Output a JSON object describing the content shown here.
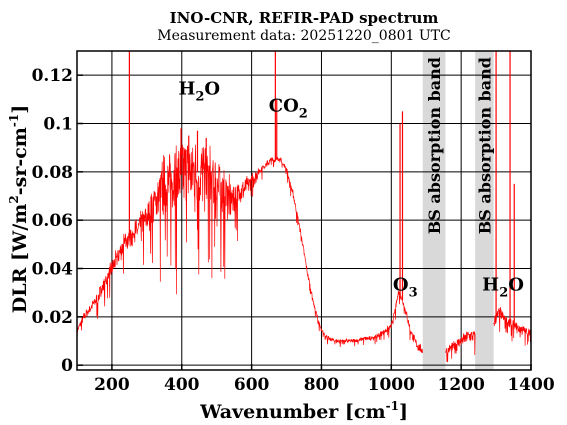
{
  "chart_data": {
    "type": "line",
    "title": "INO-CNR, REFIR-PAD spectrum",
    "subtitle": "Measurement data: 20251220_0801 UTC",
    "xlabel": {
      "main": "Wavenumber [cm",
      "sup": "-1",
      "close": "]"
    },
    "ylabel": {
      "part1": "DLR [W/m",
      "sup1": "2",
      "part2": "-sr-cm",
      "sup2": "-1",
      "part3": "]"
    },
    "xlim": [
      100,
      1400
    ],
    "ylim": [
      -0.002,
      0.13
    ],
    "x_ticks": [
      200,
      400,
      600,
      800,
      1000,
      1200,
      1400
    ],
    "y_ticks": [
      0,
      0.02,
      0.04,
      0.06,
      0.08,
      0.1,
      0.12
    ],
    "y_tick_labels": [
      "0",
      "0.02",
      "0.04",
      "0.06",
      "0.08",
      "0.1",
      "0.12"
    ],
    "grid": true,
    "line_color": "#ff0000",
    "band_color": "#d9d9d9",
    "shaded_bands": [
      {
        "x0": 1090,
        "x1": 1155,
        "label": "BS absorption band"
      },
      {
        "x0": 1240,
        "x1": 1293,
        "label": "BS absorption band"
      }
    ],
    "annotations": [
      {
        "main": "H",
        "sub": "2",
        "tail": "O",
        "x": 450,
        "y": 0.112
      },
      {
        "main": "CO",
        "sub": "2",
        "tail": "",
        "x": 705,
        "y": 0.105
      },
      {
        "main": "O",
        "sub": "3",
        "tail": "",
        "x": 1040,
        "y": 0.031
      },
      {
        "main": "H",
        "sub": "2",
        "tail": "O",
        "x": 1320,
        "y": 0.031
      }
    ],
    "series": [
      {
        "envelope_points": [
          [
            100,
            0.014
          ],
          [
            120,
            0.02
          ],
          [
            140,
            0.024
          ],
          [
            160,
            0.028
          ],
          [
            180,
            0.034
          ],
          [
            200,
            0.04
          ],
          [
            220,
            0.046
          ],
          [
            240,
            0.051
          ],
          [
            260,
            0.054
          ],
          [
            280,
            0.057
          ],
          [
            300,
            0.061
          ],
          [
            320,
            0.066
          ],
          [
            340,
            0.071
          ],
          [
            360,
            0.074
          ],
          [
            380,
            0.077
          ],
          [
            400,
            0.079
          ],
          [
            420,
            0.08
          ],
          [
            440,
            0.08
          ],
          [
            460,
            0.079
          ],
          [
            480,
            0.077
          ],
          [
            500,
            0.074
          ],
          [
            520,
            0.071
          ],
          [
            540,
            0.068
          ],
          [
            560,
            0.07
          ],
          [
            580,
            0.073
          ],
          [
            600,
            0.076
          ],
          [
            620,
            0.08
          ],
          [
            640,
            0.083
          ],
          [
            660,
            0.085
          ],
          [
            680,
            0.085
          ],
          [
            700,
            0.081
          ],
          [
            720,
            0.07
          ],
          [
            740,
            0.055
          ],
          [
            760,
            0.038
          ],
          [
            780,
            0.024
          ],
          [
            800,
            0.014
          ],
          [
            820,
            0.011
          ],
          [
            840,
            0.01
          ],
          [
            860,
            0.01
          ],
          [
            880,
            0.01
          ],
          [
            900,
            0.01
          ],
          [
            920,
            0.011
          ],
          [
            940,
            0.011
          ],
          [
            960,
            0.012
          ],
          [
            980,
            0.014
          ],
          [
            1000,
            0.016
          ],
          [
            1010,
            0.022
          ],
          [
            1020,
            0.03
          ],
          [
            1030,
            0.028
          ],
          [
            1045,
            0.02
          ],
          [
            1060,
            0.012
          ],
          [
            1075,
            0.008
          ],
          [
            1090,
            0.006
          ],
          [
            1160,
            0.006
          ],
          [
            1180,
            0.008
          ],
          [
            1200,
            0.01
          ],
          [
            1220,
            0.012
          ],
          [
            1240,
            0.012
          ],
          [
            1295,
            0.018
          ],
          [
            1310,
            0.022
          ],
          [
            1330,
            0.018
          ],
          [
            1350,
            0.016
          ],
          [
            1370,
            0.015
          ],
          [
            1385,
            0.014
          ],
          [
            1400,
            0.013
          ]
        ],
        "spikes": [
          [
            250,
            0.13
          ],
          [
            398,
            0.098
          ],
          [
            420,
            0.095
          ],
          [
            445,
            0.097
          ],
          [
            470,
            0.094
          ],
          [
            668,
            0.13
          ],
          [
            672,
            0.11
          ],
          [
            1025,
            0.1
          ],
          [
            1032,
            0.105
          ],
          [
            1300,
            0.13
          ],
          [
            1340,
            0.13
          ],
          [
            1352,
            0.075
          ]
        ],
        "noise_amplitude": [
          [
            100,
            0.004
          ],
          [
            300,
            0.02
          ],
          [
            350,
            0.045
          ],
          [
            400,
            0.05
          ],
          [
            450,
            0.05
          ],
          [
            500,
            0.045
          ],
          [
            560,
            0.02
          ],
          [
            620,
            0.005
          ],
          [
            740,
            0.005
          ],
          [
            800,
            0.003
          ],
          [
            950,
            0.003
          ],
          [
            1050,
            0.006
          ],
          [
            1160,
            0.006
          ],
          [
            1250,
            0.01
          ],
          [
            1400,
            0.006
          ]
        ]
      }
    ]
  }
}
